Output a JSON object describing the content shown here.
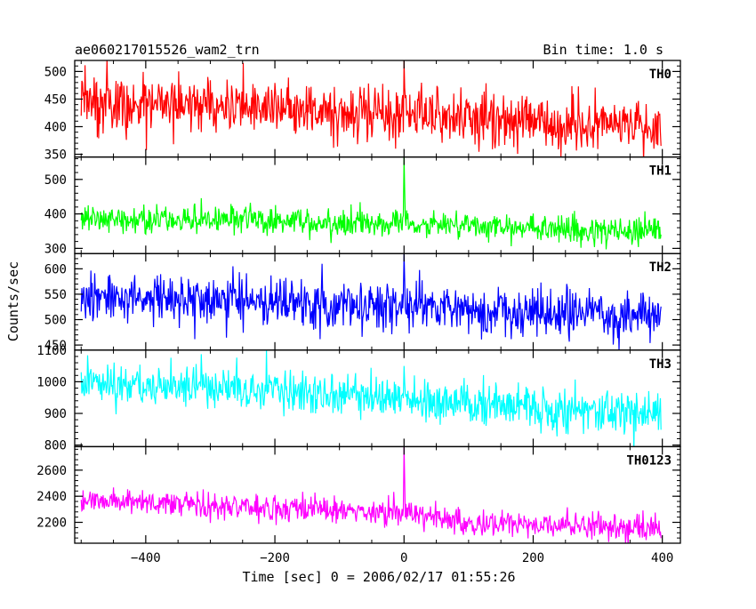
{
  "chart_data": {
    "type": "line",
    "title_left": "ae060217015526_wam2_trn",
    "title_right": "Bin time: 1.0 s",
    "xlabel": "Time [sec] 0 = 2006/02/17 01:55:26",
    "ylabel": "Counts/sec",
    "xlim": [
      -510,
      428
    ],
    "x_step": 1.0,
    "x_ticks": [
      -400,
      -200,
      0,
      200,
      400
    ],
    "grid": false,
    "panels": [
      {
        "name": "TH0",
        "color": "#ff0000",
        "ylim": [
          345,
          520
        ],
        "yticks": [
          350,
          400,
          450,
          500
        ],
        "trend": {
          "x": [
            -500,
            -100,
            0,
            100,
            400
          ],
          "y": [
            445,
            430,
            420,
            415,
            400
          ]
        },
        "noise_sd": 26,
        "spike": {
          "x": 0,
          "y": 520
        }
      },
      {
        "name": "TH1",
        "color": "#00ff00",
        "ylim": [
          285,
          565
        ],
        "yticks": [
          300,
          400,
          500
        ],
        "trend": {
          "x": [
            -500,
            -100,
            0,
            100,
            400
          ],
          "y": [
            390,
            375,
            372,
            362,
            350
          ]
        },
        "noise_sd": 19,
        "spike": {
          "x": 0,
          "y": 565
        }
      },
      {
        "name": "TH2",
        "color": "#0000ff",
        "ylim": [
          440,
          630
        ],
        "yticks": [
          450,
          500,
          550,
          600
        ],
        "trend": {
          "x": [
            -500,
            -100,
            0,
            100,
            400
          ],
          "y": [
            545,
            530,
            525,
            515,
            505
          ]
        },
        "noise_sd": 24,
        "spike": {
          "x": 0,
          "y": 630
        }
      },
      {
        "name": "TH3",
        "color": "#00ffff",
        "ylim": [
          795,
          1100
        ],
        "yticks": [
          800,
          900,
          1000,
          1100
        ],
        "trend": {
          "x": [
            -500,
            -100,
            0,
            100,
            400
          ],
          "y": [
            1000,
            960,
            945,
            925,
            900
          ]
        },
        "noise_sd": 34,
        "spike": {
          "x": 0,
          "y": 1050
        }
      },
      {
        "name": "TH0123",
        "color": "#ff00ff",
        "ylim": [
          2040,
          2780
        ],
        "yticks": [
          2200,
          2400,
          2600
        ],
        "trend": {
          "x": [
            -500,
            -100,
            0,
            100,
            400
          ],
          "y": [
            2370,
            2290,
            2270,
            2200,
            2150
          ]
        },
        "noise_sd": 48,
        "spike": {
          "x": 0,
          "y": 2780
        }
      }
    ]
  }
}
